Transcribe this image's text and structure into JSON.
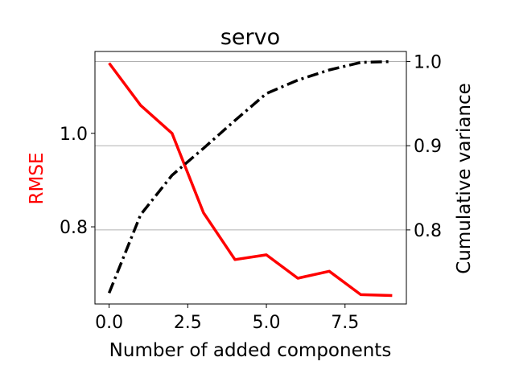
{
  "chart_data": {
    "type": "line",
    "title": "servo",
    "xlabel": "Number of added components",
    "ylabel_left": "RMSE",
    "ylabel_right": "Cumulative variance",
    "xlim": [
      -0.45,
      9.45
    ],
    "ylim_left": [
      0.635,
      1.175
    ],
    "ylim_right": [
      0.712,
      1.012
    ],
    "x_ticks": [
      0.0,
      2.5,
      5.0,
      7.5
    ],
    "x_tick_labels": [
      "0.0",
      "2.5",
      "5.0",
      "7.5"
    ],
    "y_left_ticks": [
      0.8,
      1.0
    ],
    "y_left_tick_labels": [
      "0.8",
      "1.0"
    ],
    "y_right_ticks": [
      0.8,
      0.9,
      1.0
    ],
    "y_right_tick_labels": [
      "0.8",
      "0.9",
      "1.0"
    ],
    "grid": "right-axis horizontal",
    "colors": {
      "rmse": "#ff0000",
      "variance": "#000000",
      "grid": "#b0b0b0",
      "left_label": "#ff0000"
    },
    "series": [
      {
        "axis": "left",
        "style": "solid",
        "x": [
          0,
          1,
          2,
          3,
          4,
          5,
          6,
          7,
          8,
          9
        ],
        "values": [
          1.15,
          1.06,
          1.0,
          0.83,
          0.73,
          0.74,
          0.69,
          0.705,
          0.655,
          0.653
        ]
      },
      {
        "axis": "right",
        "style": "dashdot",
        "x": [
          0,
          1,
          2,
          3,
          4,
          5,
          6,
          7,
          8,
          9
        ],
        "values": [
          0.725,
          0.818,
          0.865,
          0.897,
          0.93,
          0.962,
          0.978,
          0.99,
          0.999,
          1.0
        ]
      }
    ]
  }
}
